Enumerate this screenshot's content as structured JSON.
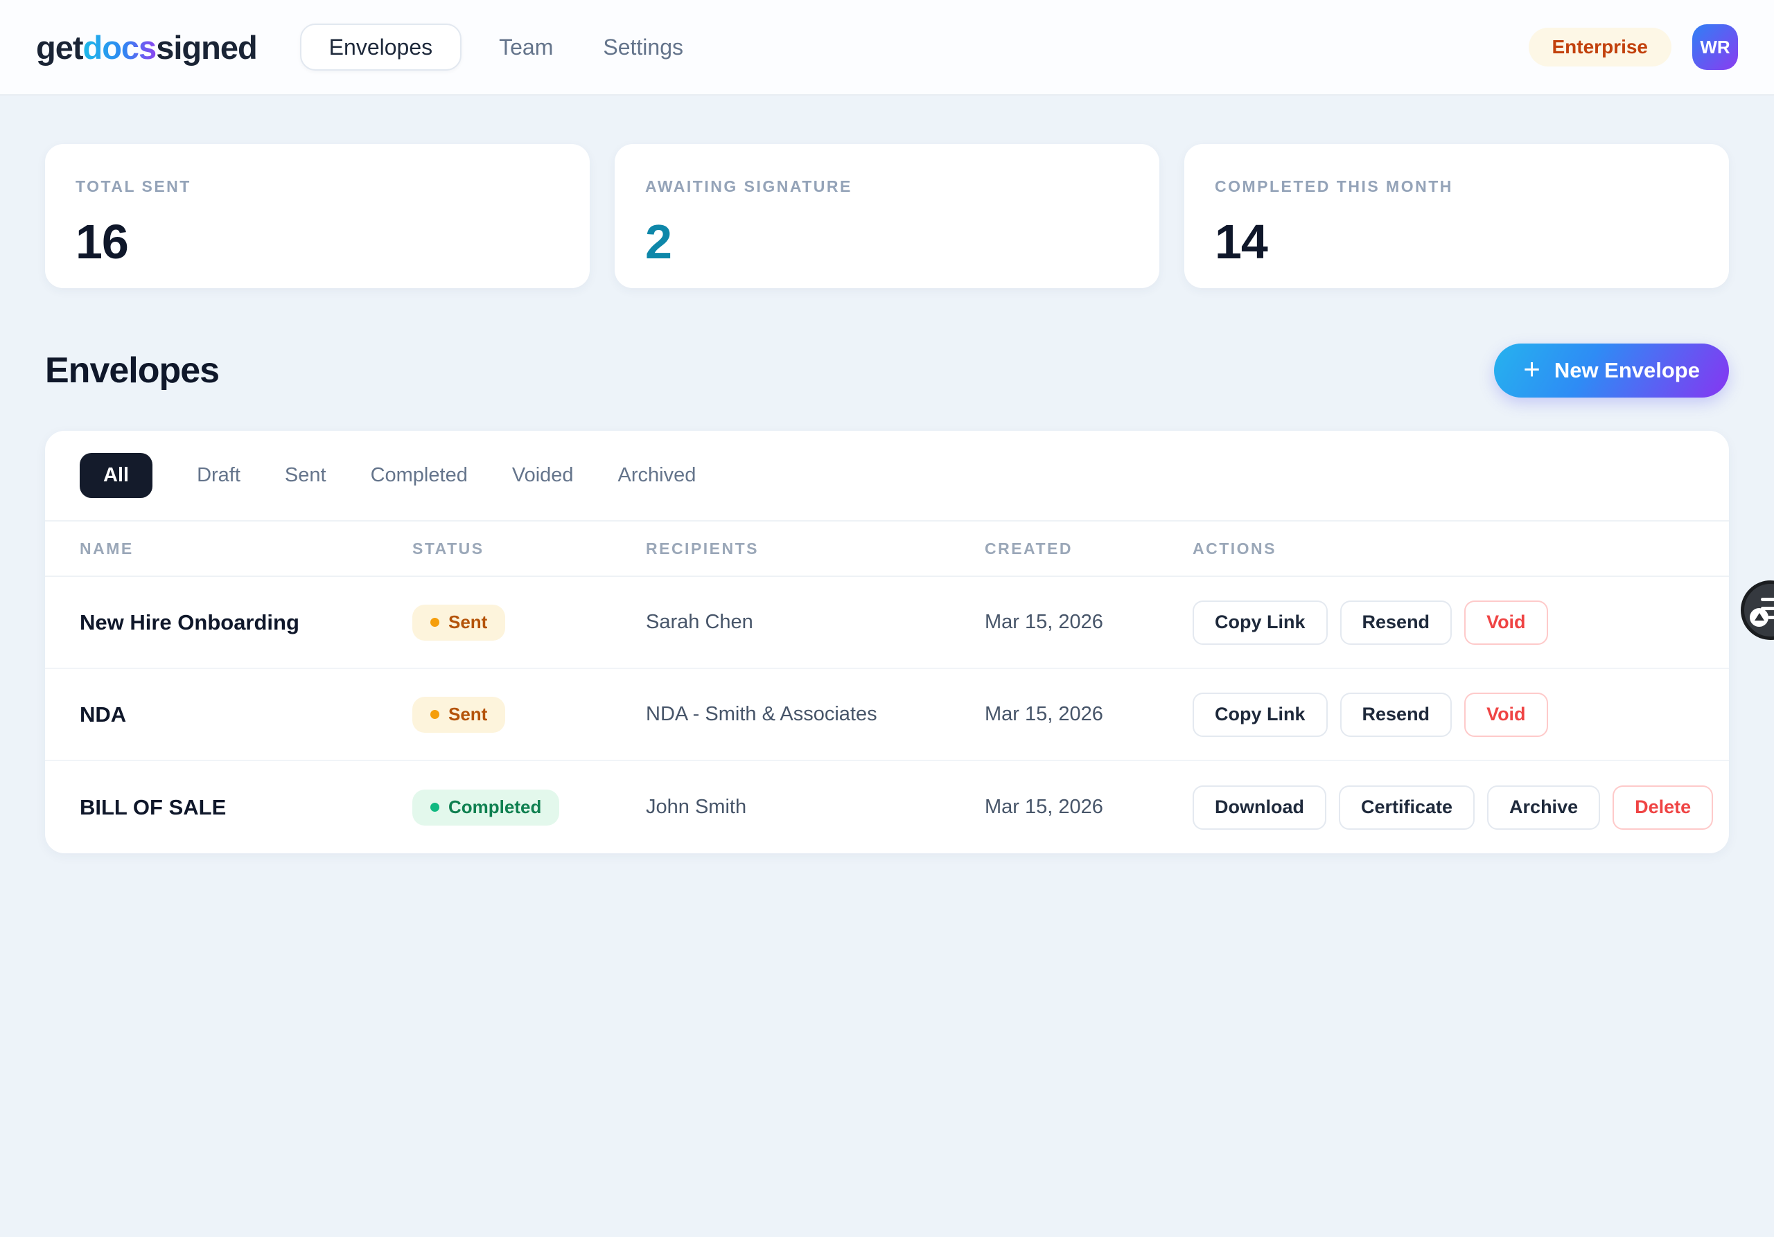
{
  "brand": {
    "part1": "get",
    "part2": "docs",
    "part3": "signed"
  },
  "nav": {
    "items": [
      {
        "label": "Envelopes",
        "active": true
      },
      {
        "label": "Team",
        "active": false
      },
      {
        "label": "Settings",
        "active": false
      }
    ],
    "plan_badge": "Enterprise",
    "avatar_initials": "WR"
  },
  "stats": [
    {
      "label": "TOTAL SENT",
      "value": "16",
      "value_color": "#0f172a"
    },
    {
      "label": "AWAITING SIGNATURE",
      "value": "2",
      "value_color": "#0e87a9"
    },
    {
      "label": "COMPLETED THIS MONTH",
      "value": "14",
      "value_color": "#0f172a"
    }
  ],
  "section": {
    "title": "Envelopes",
    "new_envelope_label": "New Envelope",
    "plus_icon": "+"
  },
  "filters": {
    "active_index": 0,
    "items": [
      "All",
      "Draft",
      "Sent",
      "Completed",
      "Voided",
      "Archived"
    ]
  },
  "table": {
    "columns": [
      "NAME",
      "STATUS",
      "RECIPIENTS",
      "CREATED",
      "ACTIONS"
    ],
    "rows": [
      {
        "name": "New Hire Onboarding",
        "status": "Sent",
        "status_type": "sent",
        "recipients": "Sarah Chen",
        "created": "Mar 15, 2026",
        "actions": [
          {
            "label": "Copy Link",
            "type": "default"
          },
          {
            "label": "Resend",
            "type": "default"
          },
          {
            "label": "Void",
            "type": "danger"
          }
        ]
      },
      {
        "name": "NDA",
        "status": "Sent",
        "status_type": "sent",
        "recipients": "NDA - Smith & Associates",
        "created": "Mar 15, 2026",
        "actions": [
          {
            "label": "Copy Link",
            "type": "default"
          },
          {
            "label": "Resend",
            "type": "default"
          },
          {
            "label": "Void",
            "type": "danger"
          }
        ]
      },
      {
        "name": "BILL OF SALE",
        "status": "Completed",
        "status_type": "completed",
        "recipients": "John Smith",
        "created": "Mar 15, 2026",
        "actions": [
          {
            "label": "Download",
            "type": "default"
          },
          {
            "label": "Certificate",
            "type": "default"
          },
          {
            "label": "Archive",
            "type": "default"
          },
          {
            "label": "Delete",
            "type": "danger"
          }
        ]
      }
    ]
  },
  "colors": {
    "page_bg": "#edf3f9",
    "accent_gradient_start": "#26b2ee",
    "accent_gradient_end": "#8636f1",
    "sent_badge_text": "#b45309",
    "completed_badge_text": "#0f8050",
    "danger": "#ef4444",
    "awaiting_value": "#0e87a9"
  }
}
